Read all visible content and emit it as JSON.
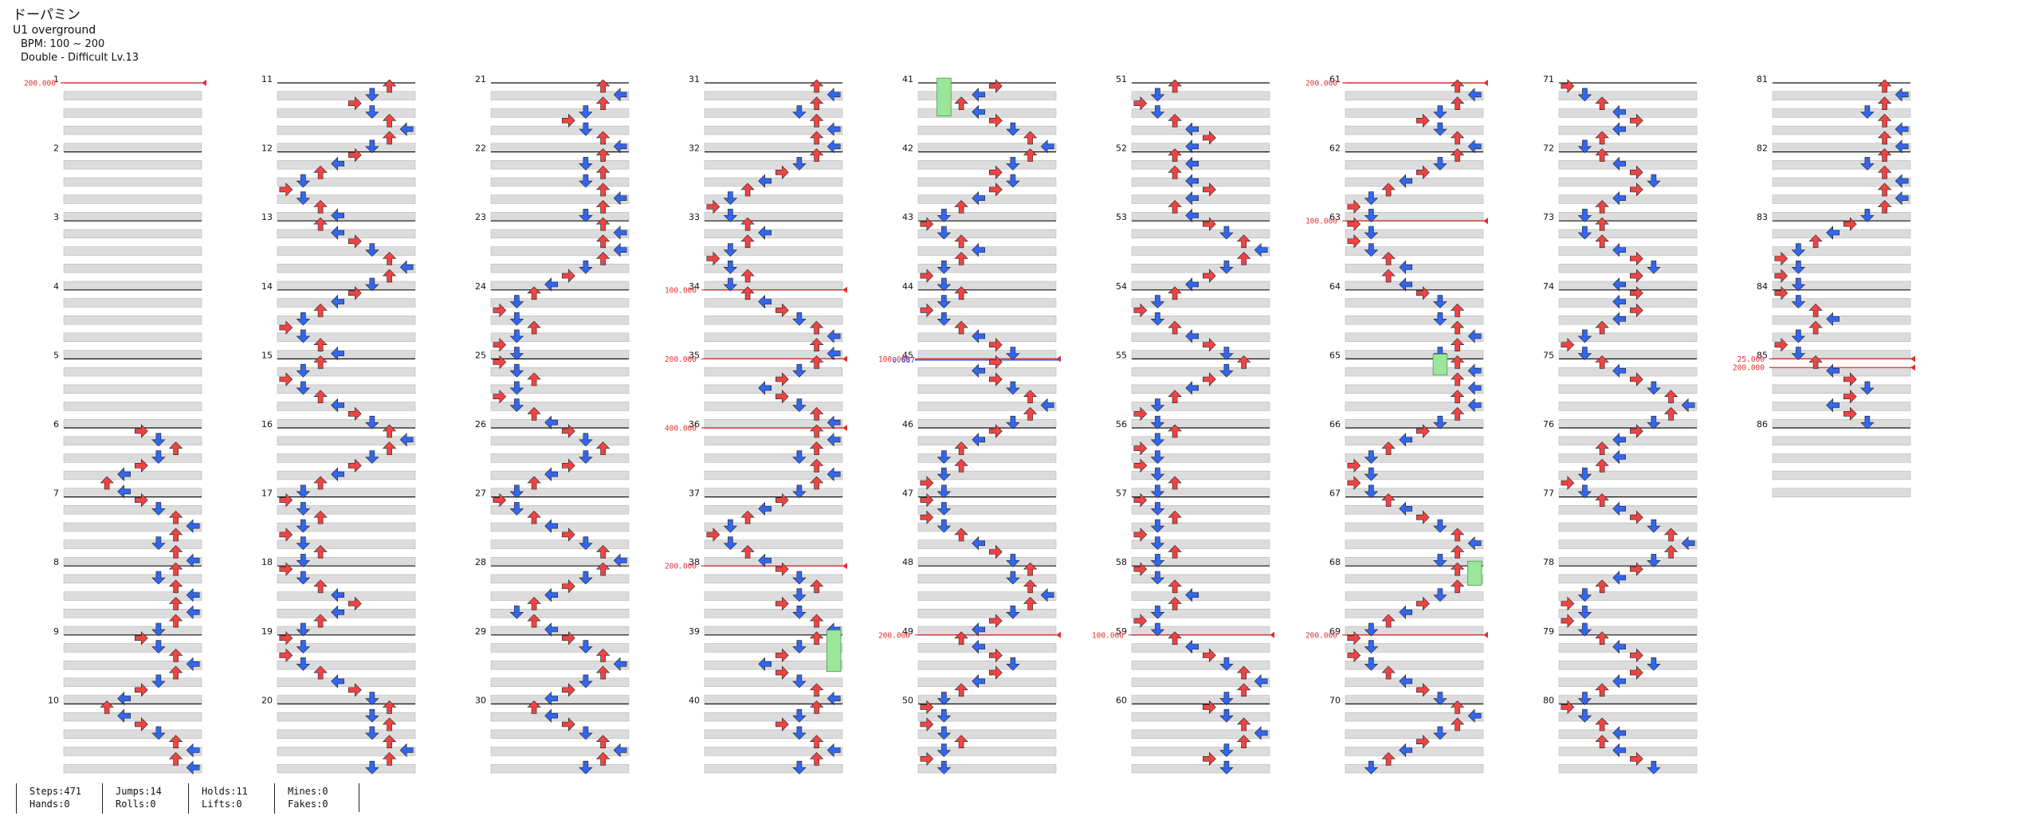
{
  "header": {
    "title": "ドーパミン",
    "artist": "U1 overground",
    "bpm": "BPM: 100 ~ 200",
    "difficulty": "Double - Difficult Lv.13"
  },
  "colors": {
    "red_note": "#ee4444",
    "blue_note": "#3366ee",
    "yellow_note": "#f2e14a",
    "purple_note": "#b055ee",
    "hold_body": "#9be69b",
    "band": "#dcdcdc",
    "bpm_line": "#e03030",
    "stop_line": "#2244dd"
  },
  "measures": [
    "1",
    "2",
    "3",
    "4",
    "5",
    "6",
    "7",
    "8",
    "9",
    "10",
    "11",
    "12",
    "13",
    "14",
    "15",
    "16",
    "17",
    "18",
    "19",
    "20",
    "21",
    "22",
    "23",
    "24",
    "25",
    "26",
    "27",
    "28",
    "29",
    "30",
    "31",
    "32",
    "33",
    "34",
    "35",
    "36",
    "37",
    "38",
    "39",
    "40",
    "41",
    "42",
    "43",
    "44",
    "45",
    "46",
    "47",
    "48",
    "49",
    "50",
    "51",
    "52",
    "53",
    "54",
    "55",
    "56",
    "57",
    "58",
    "59",
    "60",
    "61",
    "62",
    "63",
    "64",
    "65",
    "66",
    "67",
    "68",
    "69",
    "70",
    "71",
    "72",
    "73",
    "74",
    "75",
    "76",
    "77",
    "78",
    "79",
    "80",
    "81",
    "82",
    "83",
    "84",
    "85",
    "86"
  ],
  "bpm_changes": [
    {
      "measure": 1,
      "label": "200.000"
    },
    {
      "measure": 34,
      "label": "100.000"
    },
    {
      "measure": 35,
      "label": "200.000"
    },
    {
      "measure": 36,
      "label": "400.000"
    },
    {
      "measure": 38,
      "label": "200.000"
    },
    {
      "measure": 45,
      "label": "100.000"
    },
    {
      "measure": 49,
      "label": "200.000"
    },
    {
      "measure": 59,
      "label": "100.000"
    },
    {
      "measure": 61,
      "label": "200.000"
    },
    {
      "measure": 63,
      "label": "100.000"
    },
    {
      "measure": 69,
      "label": "200.000"
    },
    {
      "measure": 85,
      "label": "25.000"
    },
    {
      "measure": 85.125,
      "label": "200.000"
    }
  ],
  "stops": [
    {
      "measure": 45,
      "label": "0.667"
    }
  ],
  "stats": {
    "steps": "Steps:471",
    "hands": "Hands:0",
    "jumps": "Jumps:14",
    "rolls": "Rolls:0",
    "holds": "Holds:11",
    "lifts": "Lifts:0",
    "mines": "Mines:0",
    "fakes": "Fakes:0"
  }
}
